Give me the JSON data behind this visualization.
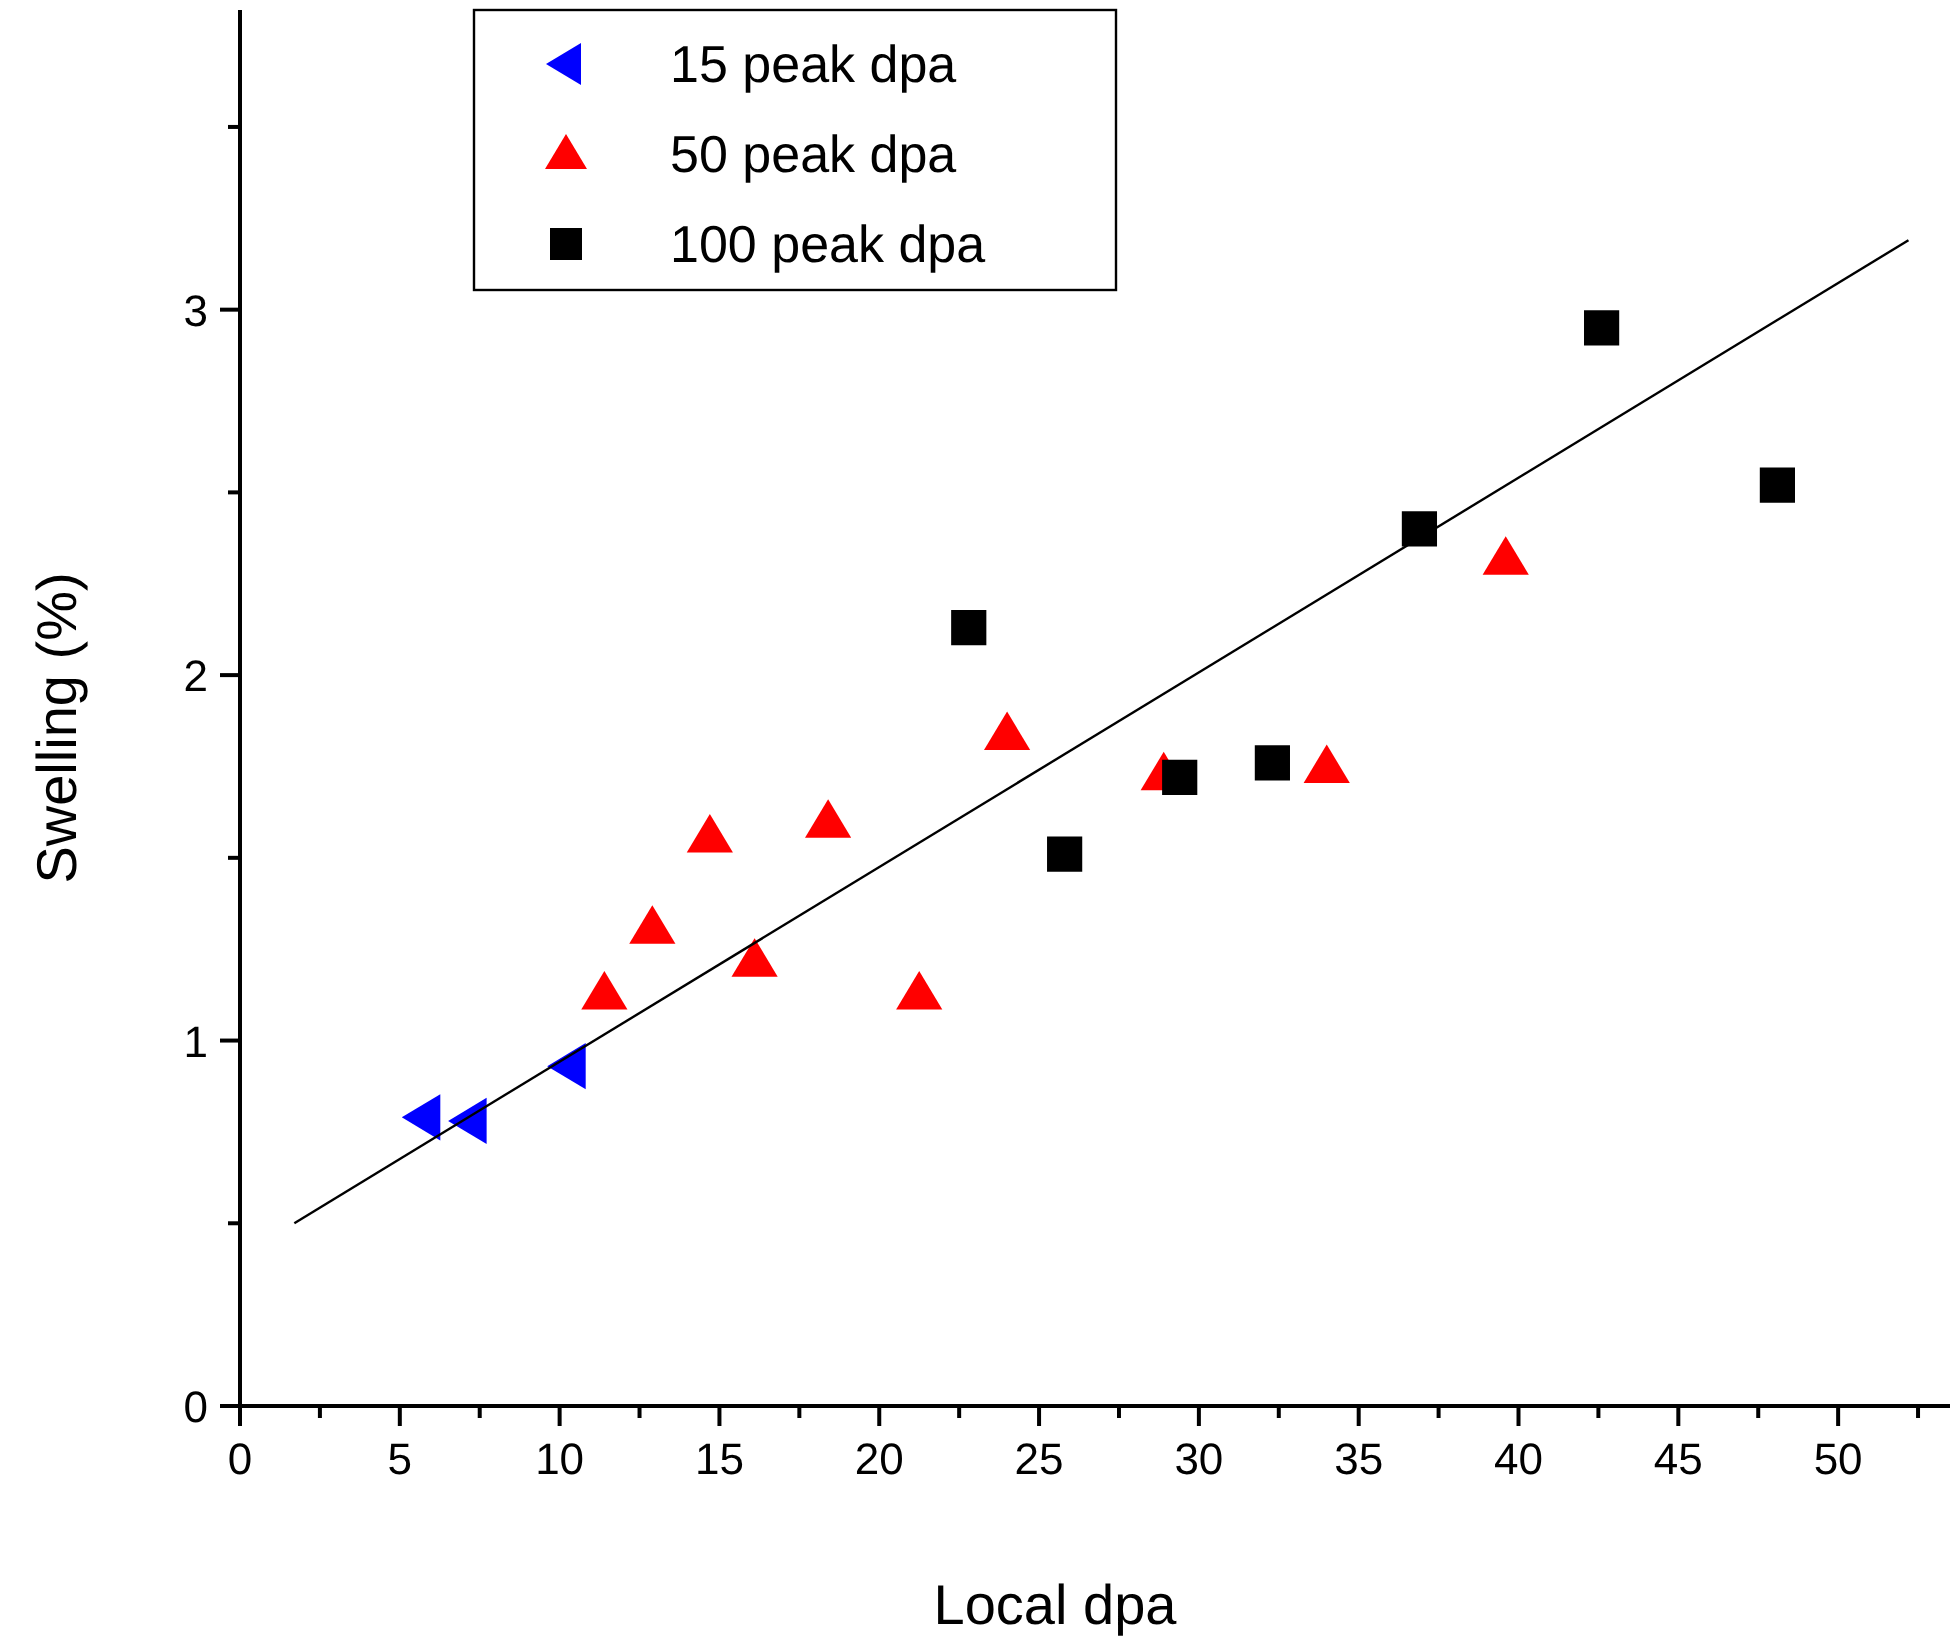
{
  "chart_data": {
    "type": "scatter",
    "xlabel": "Local dpa",
    "ylabel": "Swelling (%)",
    "xlim": [
      0,
      53.5
    ],
    "ylim": [
      0,
      3.82
    ],
    "xticks": [
      0,
      {
        "value": 2.5,
        "label": null
      },
      5,
      {
        "value": 7.5,
        "label": null
      },
      10,
      {
        "value": 12.5,
        "label": null
      },
      15,
      {
        "value": 17.5,
        "label": null
      },
      20,
      {
        "value": 22.5,
        "label": null
      },
      25,
      {
        "value": 27.5,
        "label": null
      },
      30,
      {
        "value": 32.5,
        "label": null
      },
      35,
      {
        "value": 37.5,
        "label": null
      },
      40,
      {
        "value": 42.5,
        "label": null
      },
      45,
      {
        "value": 47.5,
        "label": null
      },
      50,
      {
        "value": 52.5,
        "label": null
      }
    ],
    "yticks": [
      0,
      {
        "value": 0.5,
        "label": null
      },
      1,
      {
        "value": 1.5,
        "label": null
      },
      2,
      {
        "value": 2.5,
        "label": null
      },
      3,
      {
        "value": 3.5,
        "label": null
      }
    ],
    "grid": false,
    "legend": "top left",
    "series": [
      {
        "name": "15 peak dpa",
        "color": "#0000ff",
        "marker": "triangle-left",
        "x": [
          5.75,
          7.2,
          10.3
        ],
        "values": [
          0.79,
          0.78,
          0.93
        ]
      },
      {
        "name": "50 peak dpa",
        "color": "#ff0000",
        "marker": "triangle",
        "x": [
          11.4,
          12.9,
          14.7,
          16.1,
          18.4,
          21.25,
          24.0,
          28.9,
          34.0,
          39.6
        ],
        "values": [
          1.13,
          1.31,
          1.56,
          1.22,
          1.6,
          1.13,
          1.84,
          1.73,
          1.75,
          2.32
        ]
      },
      {
        "name": "100 peak dpa",
        "color": "#000000",
        "marker": "square",
        "x": [
          22.8,
          25.8,
          29.4,
          32.3,
          36.9,
          42.6,
          48.1
        ],
        "values": [
          2.13,
          1.51,
          1.72,
          1.76,
          2.4,
          2.95,
          2.52
        ]
      },
      {
        "type": "line",
        "color": "#000000",
        "marker": "none",
        "line_style": "solid",
        "x": [
          1.7,
          52.2
        ],
        "values": [
          0.5,
          3.19
        ]
      }
    ]
  }
}
